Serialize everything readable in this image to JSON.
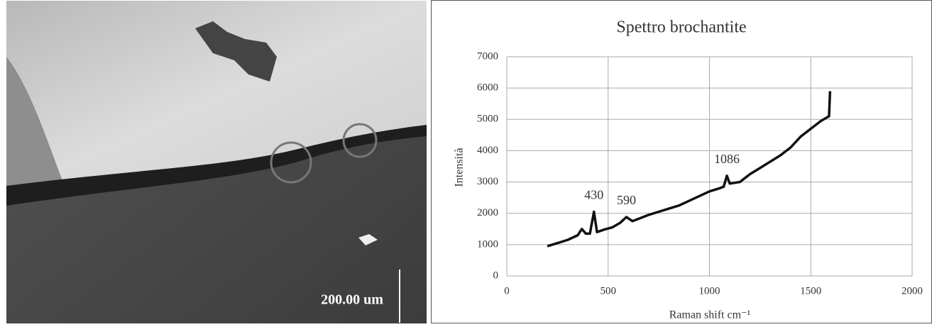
{
  "image": {
    "scale_label": "200.00 um"
  },
  "chart_data": {
    "type": "line",
    "title": "Spettro brochantite",
    "x_label": "Raman shift cm⁻¹",
    "y_label": "Intensità",
    "x": [
      200,
      250,
      300,
      350,
      370,
      390,
      410,
      430,
      445,
      480,
      520,
      560,
      590,
      620,
      660,
      700,
      750,
      800,
      850,
      900,
      950,
      1000,
      1050,
      1070,
      1086,
      1100,
      1150,
      1200,
      1250,
      1300,
      1350,
      1400,
      1450,
      1500,
      1550,
      1590,
      1595
    ],
    "series": [
      {
        "color": "#111111",
        "values": [
          950,
          1050,
          1150,
          1300,
          1500,
          1350,
          1350,
          2050,
          1400,
          1480,
          1550,
          1700,
          1880,
          1750,
          1850,
          1950,
          2050,
          2150,
          2250,
          2400,
          2550,
          2700,
          2800,
          2850,
          3200,
          2950,
          3000,
          3250,
          3450,
          3650,
          3850,
          4100,
          4450,
          4700,
          4950,
          5100,
          5900
        ]
      }
    ],
    "annotations": [
      430,
      590,
      1086
    ],
    "xlim": [
      0,
      2000
    ],
    "xticks": [
      0,
      500,
      1000,
      1500,
      2000
    ],
    "ylim": [
      0,
      7000
    ],
    "yticks": [
      0,
      1000,
      2000,
      3000,
      4000,
      5000,
      6000,
      7000
    ],
    "grid": true
  }
}
